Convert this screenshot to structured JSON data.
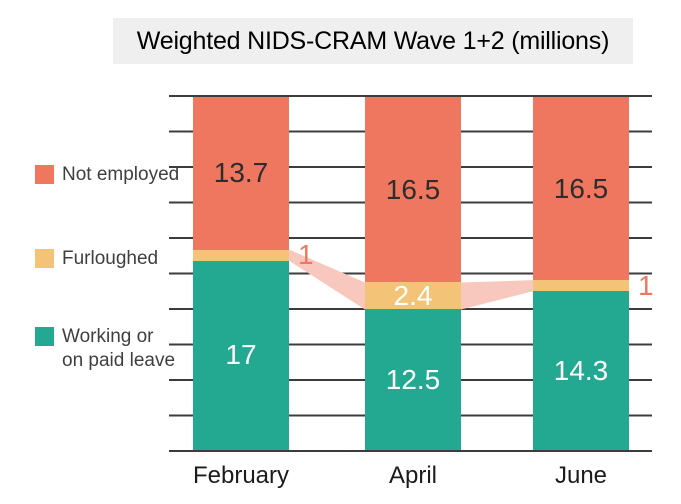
{
  "title": "Weighted NIDS-CRAM Wave 1+2 (millions)",
  "legend": {
    "items": [
      {
        "id": "not-employed",
        "color": "#F0775F",
        "lines": [
          "Not employed"
        ]
      },
      {
        "id": "furloughed",
        "color": "#F3C378",
        "lines": [
          "Furloughed"
        ]
      },
      {
        "id": "working-or-on-paid-leave",
        "color": "#23A991",
        "lines": [
          "Working or",
          "on paid leave"
        ]
      }
    ]
  },
  "chart_data": {
    "type": "bar",
    "subtype": "stacked-100-height",
    "title": "Weighted NIDS-CRAM Wave 1+2 (millions)",
    "categories": [
      "February",
      "April",
      "June"
    ],
    "series": [
      {
        "name": "Not employed",
        "color": "#F0775F",
        "values": [
          13.7,
          16.5,
          16.5
        ],
        "label_style": "inside-dark"
      },
      {
        "name": "Furloughed",
        "color": "#F3C378",
        "values": [
          1,
          2.4,
          1
        ],
        "label_style": "auto"
      },
      {
        "name": "Working or on paid leave",
        "color": "#23A991",
        "values": [
          17,
          12.5,
          14.3
        ],
        "label_style": "inside-white"
      }
    ],
    "value_labels": {
      "inside_dark_color": "#2d2d2d",
      "inside_white_color": "#ffffff",
      "outside_color": "#F0775F"
    },
    "connector_ribbon": {
      "between_series": "Furloughed",
      "color": "#F8C8BF"
    },
    "grid": "horizontal",
    "gridline_count": 11,
    "ylabel": "",
    "xlabel": ""
  }
}
